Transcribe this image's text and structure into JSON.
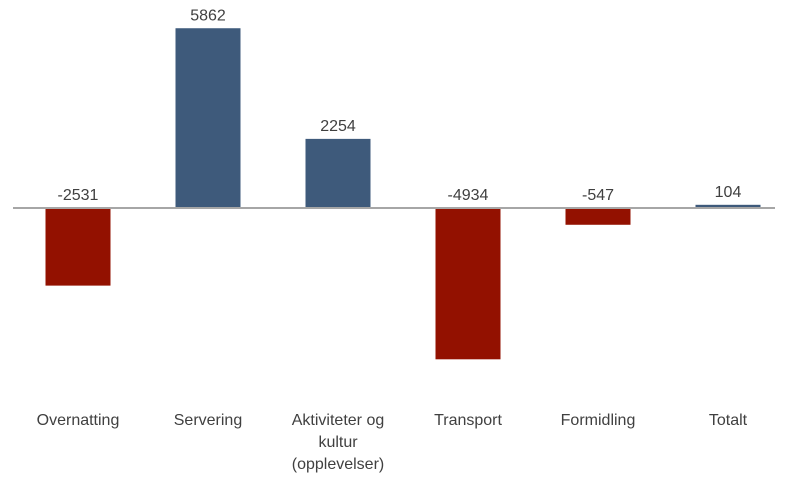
{
  "chart_data": {
    "type": "bar",
    "categories": [
      "Overnatting",
      "Servering",
      "Aktiviteter og kultur (opplevelser)",
      "Transport",
      "Formidling",
      "Totalt"
    ],
    "values": [
      -2531,
      5862,
      2254,
      -4934,
      -547,
      104
    ],
    "positive_color": "#3e5a7b",
    "negative_color": "#931100",
    "ylim": [
      -6000,
      6000
    ]
  }
}
